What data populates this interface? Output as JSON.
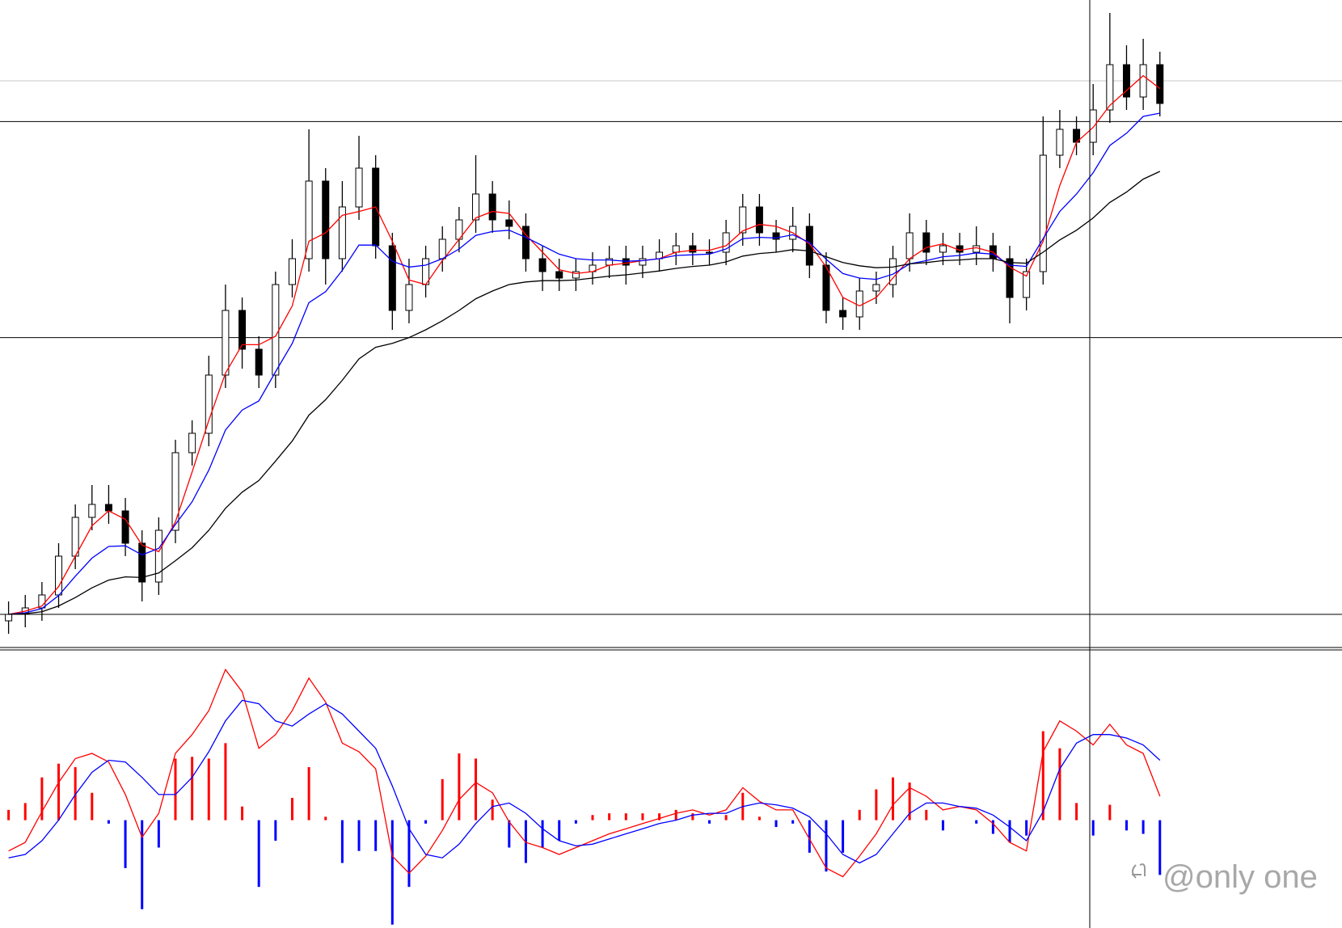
{
  "chart_data": [
    {
      "type": "candlestick",
      "open": [
        4,
        5,
        6,
        8,
        14,
        20,
        22,
        21,
        16,
        10,
        18,
        30,
        33,
        42,
        52,
        46,
        42,
        56,
        60,
        72,
        60,
        68,
        74,
        62,
        52,
        56,
        60,
        63,
        66,
        70,
        66,
        65,
        60,
        58,
        57,
        58,
        59,
        60,
        59,
        60,
        61,
        62,
        61,
        61,
        64,
        68,
        64,
        63,
        65,
        59,
        52,
        51,
        55,
        56,
        60,
        64,
        61,
        62,
        61,
        62,
        60,
        54,
        58,
        76,
        80,
        78,
        83,
        90,
        85,
        90
      ],
      "high": [
        7,
        8,
        10,
        16,
        22,
        25,
        25,
        23,
        18,
        20,
        32,
        35,
        45,
        56,
        54,
        48,
        58,
        63,
        80,
        74,
        72,
        79,
        76,
        64,
        60,
        62,
        65,
        68,
        76,
        72,
        69,
        67,
        62,
        60,
        60,
        61,
        62,
        62,
        62,
        63,
        64,
        64,
        63,
        66,
        70,
        70,
        66,
        68,
        67,
        61,
        54,
        57,
        58,
        62,
        67,
        66,
        64,
        64,
        65,
        64,
        62,
        60,
        82,
        83,
        82,
        87,
        98,
        93,
        94,
        92
      ],
      "low": [
        2,
        3,
        4,
        6,
        12,
        18,
        19,
        14,
        7,
        8,
        16,
        28,
        31,
        40,
        43,
        40,
        40,
        54,
        58,
        56,
        58,
        66,
        60,
        49,
        50,
        54,
        58,
        61,
        64,
        64,
        63,
        58,
        55,
        55,
        55,
        56,
        57,
        56,
        57,
        58,
        59,
        59,
        59,
        59,
        62,
        62,
        61,
        61,
        57,
        50,
        49,
        49,
        53,
        54,
        58,
        59,
        59,
        59,
        59,
        58,
        50,
        52,
        56,
        74,
        76,
        76,
        81,
        83,
        83,
        82
      ],
      "close": [
        5,
        6,
        8,
        14,
        20,
        22,
        21,
        16,
        10,
        18,
        30,
        33,
        42,
        52,
        46,
        42,
        56,
        60,
        72,
        60,
        68,
        74,
        62,
        52,
        56,
        60,
        63,
        66,
        70,
        66,
        65,
        60,
        58,
        57,
        58,
        59,
        60,
        59,
        60,
        61,
        62,
        61,
        61,
        64,
        68,
        64,
        63,
        65,
        59,
        52,
        51,
        55,
        56,
        60,
        64,
        61,
        62,
        61,
        62,
        60,
        54,
        58,
        76,
        80,
        78,
        83,
        90,
        85,
        90,
        84
      ],
      "series": [
        {
          "color": "#ff0000",
          "values": [
            5,
            5.5,
            6.3,
            9.3,
            14,
            18.7,
            21,
            19.7,
            15.7,
            14.7,
            19.3,
            27,
            35,
            42.3,
            46.7,
            46.7,
            48,
            52.7,
            62.7,
            64,
            66.7,
            67.3,
            68,
            62.7,
            56.7,
            56,
            59.7,
            63,
            66.3,
            67.3,
            67,
            63.7,
            61,
            58.3,
            57.7,
            58,
            59,
            59.3,
            59.7,
            60,
            61,
            61.3,
            61.3,
            62,
            64.3,
            65.3,
            65,
            64,
            62.3,
            58.7,
            54,
            52.7,
            54,
            57,
            60,
            61.7,
            62.3,
            61.3,
            61.7,
            61,
            58.7,
            57.3,
            62.7,
            71.3,
            78,
            80.3,
            83.7,
            86,
            88.3,
            86.3
          ]
        },
        {
          "color": "#0000ff",
          "values": [
            5,
            5.25,
            5.9,
            7.9,
            10.9,
            13.7,
            15.5,
            15.6,
            14.2,
            15.2,
            18.9,
            22.4,
            27.3,
            33.5,
            36.6,
            38,
            42.5,
            46.9,
            53.2,
            54.9,
            58.2,
            62.1,
            62.1,
            59.6,
            58.7,
            59,
            60,
            61.5,
            63.6,
            64.2,
            64.4,
            63.3,
            62,
            60.7,
            60,
            59.8,
            59.8,
            59.6,
            59.7,
            60,
            60.5,
            60.6,
            60.7,
            61.5,
            63.1,
            63.3,
            63.2,
            63.7,
            62.5,
            59.9,
            57.7,
            57,
            56.8,
            57.6,
            59.2,
            59.7,
            60.3,
            60.5,
            60.9,
            60.7,
            59,
            58.8,
            63.1,
            67.3,
            70,
            73.3,
            77.5,
            79.4,
            82,
            82.5
          ]
        },
        {
          "color": "#000000",
          "values": [
            5,
            5.1,
            5.4,
            6.3,
            7.6,
            9.1,
            10.3,
            10.8,
            10.7,
            11.4,
            13.3,
            15.3,
            18,
            21.4,
            23.9,
            25.7,
            28.7,
            31.8,
            35.8,
            38.2,
            41.2,
            44.5,
            46.3,
            46.9,
            47.8,
            49,
            50.4,
            52,
            53.8,
            55,
            56,
            56.4,
            56.6,
            56.6,
            56.7,
            57,
            57.3,
            57.5,
            57.8,
            58.1,
            58.5,
            58.8,
            59,
            59.5,
            60.4,
            60.8,
            61,
            61.4,
            61.2,
            60.3,
            59.4,
            58.9,
            58.6,
            58.7,
            59.2,
            59.4,
            59.7,
            59.8,
            60,
            60,
            59.4,
            59.3,
            61,
            62.9,
            64.4,
            66.3,
            68.7,
            70.3,
            72.3,
            73.5
          ]
        }
      ],
      "hlines": [
        {
          "value": 87.5,
          "color": "#c8c8c8"
        },
        {
          "value": 81.2,
          "color": "#000000"
        },
        {
          "value": 47.8,
          "color": "#000000"
        },
        {
          "value": 5,
          "color": "#000000"
        }
      ],
      "ylim": [
        0,
        100
      ]
    },
    {
      "type": "macd",
      "histogram": {
        "positive_color": "#ff0000",
        "negative_color": "#0000ff",
        "values": [
          6,
          10,
          25,
          33,
          31,
          16,
          -2,
          -28,
          -52,
          -16,
          36,
          37,
          36,
          45,
          8,
          -39,
          -12,
          13,
          31,
          2,
          -25,
          -18,
          -18,
          -61,
          -39,
          -2,
          24,
          39,
          36,
          12,
          -16,
          -25,
          -16,
          -12,
          -2,
          3,
          4,
          4,
          4,
          4,
          6,
          4,
          -2,
          3,
          16,
          2,
          -4,
          -2,
          -19,
          -30,
          -19,
          6,
          18,
          25,
          22,
          6,
          -6,
          0,
          -2,
          -8,
          -13,
          -9,
          52,
          42,
          10,
          -9,
          9,
          -6,
          -8,
          -32
        ]
      },
      "series": [
        {
          "color": "#ff0000",
          "values": [
            -18,
            -13,
            5,
            22,
            36,
            39,
            34,
            15,
            -10,
            4,
            39,
            50,
            64,
            88,
            75,
            42,
            50,
            64,
            83,
            69,
            45,
            40,
            30,
            -21,
            -31,
            -21,
            -6,
            12,
            22,
            16,
            -1,
            -13,
            -16,
            -20,
            -16,
            -12,
            -8,
            -5,
            -2,
            1,
            4,
            6,
            3,
            6,
            19,
            11,
            6,
            6,
            -11,
            -28,
            -33,
            -21,
            -8,
            9,
            19,
            14,
            6,
            8,
            6,
            -2,
            -13,
            -18,
            40,
            58,
            52,
            44,
            56,
            44,
            39,
            14
          ]
        },
        {
          "color": "#0000ff",
          "values": [
            -22,
            -20,
            -12,
            0,
            15,
            28,
            35,
            34,
            25,
            15,
            15,
            25,
            40,
            58,
            70,
            68,
            58,
            55,
            62,
            68,
            62,
            52,
            42,
            20,
            -5,
            -20,
            -22,
            -14,
            -2,
            8,
            10,
            4,
            -5,
            -12,
            -15,
            -14,
            -11,
            -8,
            -5,
            -2,
            0,
            3,
            4,
            4,
            8,
            10,
            9,
            7,
            2,
            -8,
            -20,
            -25,
            -20,
            -8,
            4,
            10,
            10,
            8,
            7,
            3,
            -4,
            -12,
            5,
            30,
            45,
            50,
            50,
            48,
            44,
            35
          ]
        }
      ],
      "ylim": [
        -63,
        99
      ]
    }
  ],
  "watermark": "@only one"
}
